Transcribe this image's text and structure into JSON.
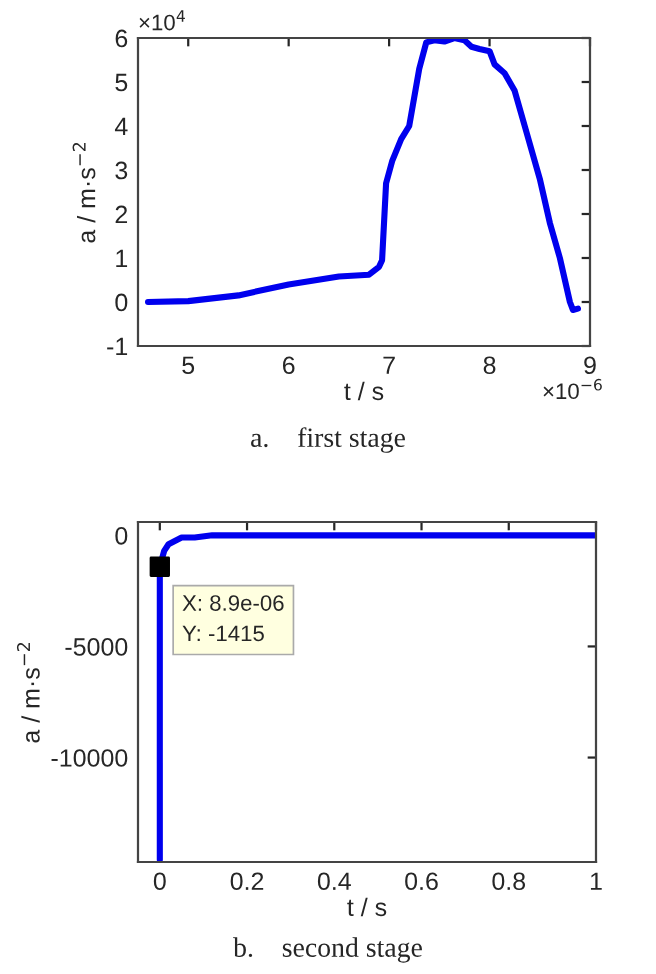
{
  "chart_data": [
    {
      "type": "line",
      "xlabel": "t / s",
      "ylabel": "a / m·s$^{−2}$",
      "xlim": [
        4.5,
        9
      ],
      "ylim": [
        -1,
        6
      ],
      "xticks": [
        5,
        6,
        7,
        8,
        9
      ],
      "yticks": [
        -1,
        0,
        1,
        2,
        3,
        4,
        5,
        6
      ],
      "grid": false,
      "legend": false,
      "marker": "none",
      "line_style": "solid",
      "series": [
        {
          "color": "#0000ee",
          "x": [
            4.6,
            5.0,
            5.5,
            6.0,
            6.5,
            6.8,
            6.9,
            6.93,
            6.97,
            7.03,
            7.12,
            7.2,
            7.3,
            7.37,
            7.45,
            7.55,
            7.65,
            7.75,
            7.82,
            7.9,
            8.0,
            8.05,
            8.15,
            8.25,
            8.35,
            8.5,
            8.6,
            8.7,
            8.8,
            8.83,
            8.88
          ],
          "values": [
            0,
            0.02,
            0.15,
            0.4,
            0.58,
            0.62,
            0.8,
            0.95,
            2.7,
            3.2,
            3.7,
            4.0,
            5.3,
            5.9,
            5.95,
            5.92,
            6.0,
            5.95,
            5.8,
            5.75,
            5.7,
            5.4,
            5.2,
            4.8,
            4.0,
            2.8,
            1.8,
            1.0,
            0.0,
            -0.18,
            -0.15
          ]
        }
      ],
      "annotations": [
        "×10$^{4}$",
        "×10$^{−6}$",
        "a.    first stage"
      ]
    },
    {
      "type": "line",
      "xlabel": "t / s",
      "ylabel": "a / m·s$^{−2}$",
      "xlim": [
        -0.05,
        1
      ],
      "ylim": [
        -14700,
        600
      ],
      "xticks": [
        0,
        0.2,
        0.4,
        0.6,
        0.8,
        1
      ],
      "yticks": [
        -10000,
        -5000,
        0
      ],
      "grid": false,
      "legend": false,
      "marker": "none",
      "line_style": "solid",
      "series": [
        {
          "color": "#0000ee",
          "x": [
            0,
            8.9e-06,
            0.01,
            0.02,
            0.03,
            0.05,
            0.08,
            0.12,
            0.2,
            0.5,
            1
          ],
          "values": [
            -14600,
            -1415,
            -700,
            -400,
            -300,
            -100,
            -100,
            0,
            0,
            0,
            0
          ]
        },
        {
          "type": "scatter",
          "marker": "square",
          "color": "#000000",
          "x": [
            8.9e-06
          ],
          "values": [
            -1415
          ]
        }
      ],
      "annotations": [
        {
          "text": "X: 8.9e-06\nY: -1415",
          "x": 8.9e-06,
          "y": -1415
        },
        "b.    second stage"
      ]
    }
  ]
}
